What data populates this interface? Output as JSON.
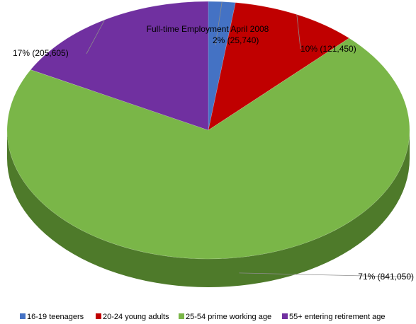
{
  "chart_data": {
    "type": "pie",
    "title": "Full-time  Employment April 2008",
    "categories": [
      "16-19 teenagers",
      "20-24 young adults",
      "25-54 prime working age",
      "55+ entering retirement age"
    ],
    "series": [
      {
        "values": [
          25740,
          121450,
          841050,
          205605
        ]
      }
    ],
    "data_labels": [
      "2% (25,740)",
      "10% (121,450)",
      "71% (841,050)",
      "17% (205,605)"
    ],
    "colors": [
      "#4472C4",
      "#C00000",
      "#7AB648",
      "#7030A0"
    ],
    "side_colors": [
      "#2F5597",
      "#8B0000",
      "#4E7A2A",
      "#4B1F6F"
    ],
    "legend_position": "bottom",
    "style": "3d-pie"
  }
}
